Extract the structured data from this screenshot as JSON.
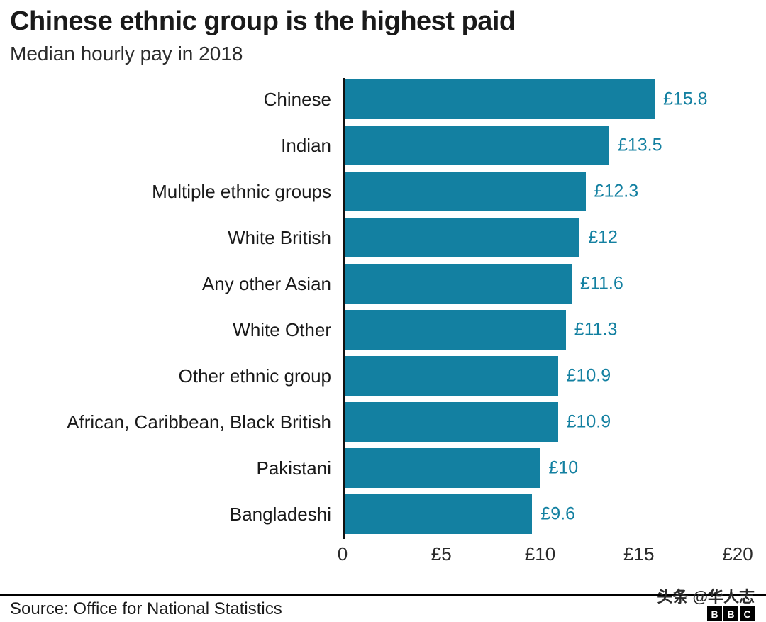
{
  "header": {
    "title": "Chinese ethnic group is the highest paid",
    "subtitle": "Median hourly pay in 2018"
  },
  "chart_data": {
    "type": "bar",
    "orientation": "horizontal",
    "title": "Chinese ethnic group is the highest paid",
    "subtitle": "Median hourly pay in 2018",
    "xlabel": "",
    "ylabel": "",
    "xlim": [
      0,
      20
    ],
    "grid": false,
    "legend": false,
    "bar_color": "#1380A1",
    "value_label_color": "#1380A1",
    "categories": [
      "Chinese",
      "Indian",
      "Multiple ethnic groups",
      "White British",
      "Any other Asian",
      "White Other",
      "Other ethnic group",
      "African, Caribbean, Black British",
      "Pakistani",
      "Bangladeshi"
    ],
    "values": [
      15.8,
      13.5,
      12.3,
      12,
      11.6,
      11.3,
      10.9,
      10.9,
      10,
      9.6
    ],
    "value_labels": [
      "£15.8",
      "£13.5",
      "£12.3",
      "£12",
      "£11.6",
      "£11.3",
      "£10.9",
      "£10.9",
      "£10",
      "£9.6"
    ],
    "x_ticks": [
      {
        "value": 0,
        "label": "0"
      },
      {
        "value": 5,
        "label": "£5"
      },
      {
        "value": 10,
        "label": "£10"
      },
      {
        "value": 15,
        "label": "£15"
      },
      {
        "value": 20,
        "label": "£20"
      }
    ]
  },
  "footer": {
    "source": "Source: Office for National Statistics",
    "watermark": "头条 @华人志",
    "logo_letters": [
      "B",
      "B",
      "C"
    ]
  }
}
